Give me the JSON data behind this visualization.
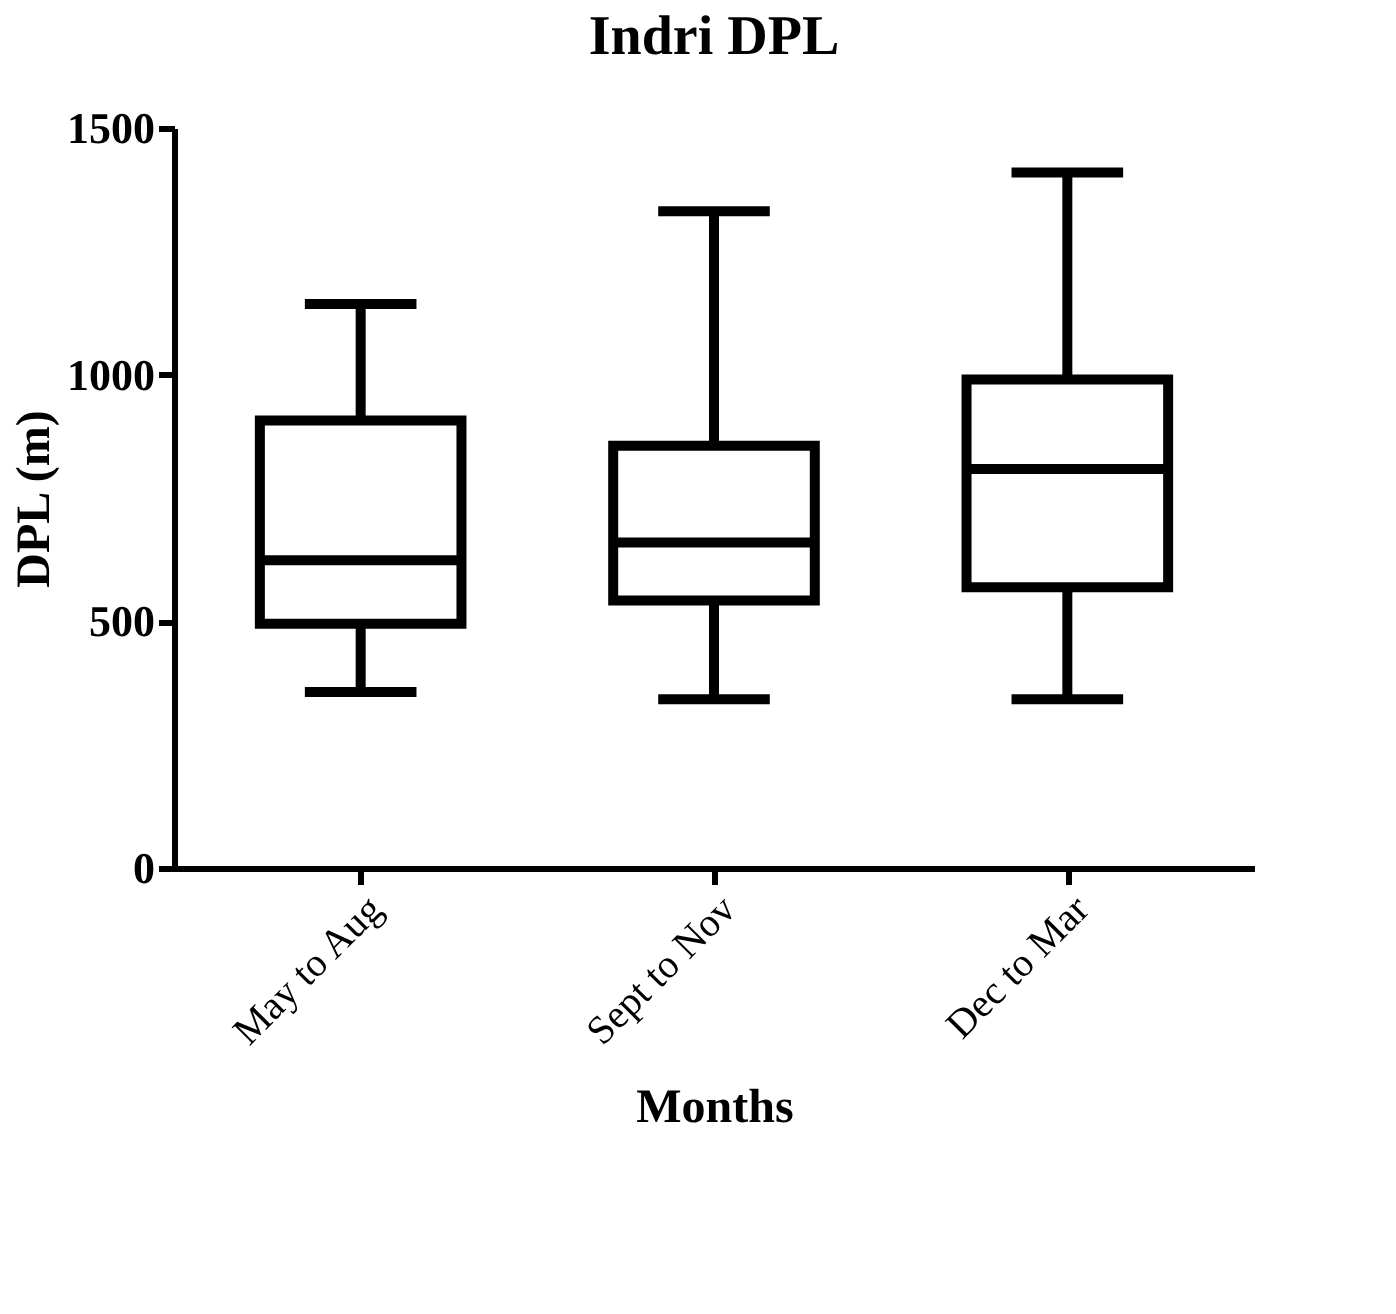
{
  "chart_data": {
    "type": "box",
    "title": "Indri DPL",
    "xlabel": "Months",
    "ylabel": "DPL (m)",
    "categories": [
      "May to Aug",
      "Sept to Nov",
      "Dec to Mar"
    ],
    "boxes": [
      {
        "low": 357,
        "q1": 495,
        "median": 624,
        "q3": 907,
        "high": 1143
      },
      {
        "low": 342,
        "q1": 542,
        "median": 660,
        "q3": 856,
        "high": 1331
      },
      {
        "low": 342,
        "q1": 569,
        "median": 809,
        "q3": 990,
        "high": 1410
      }
    ],
    "color": "#000000",
    "ylim": [
      0,
      1500
    ],
    "yticks": [
      0,
      500,
      1000,
      1500
    ],
    "grid": false
  }
}
